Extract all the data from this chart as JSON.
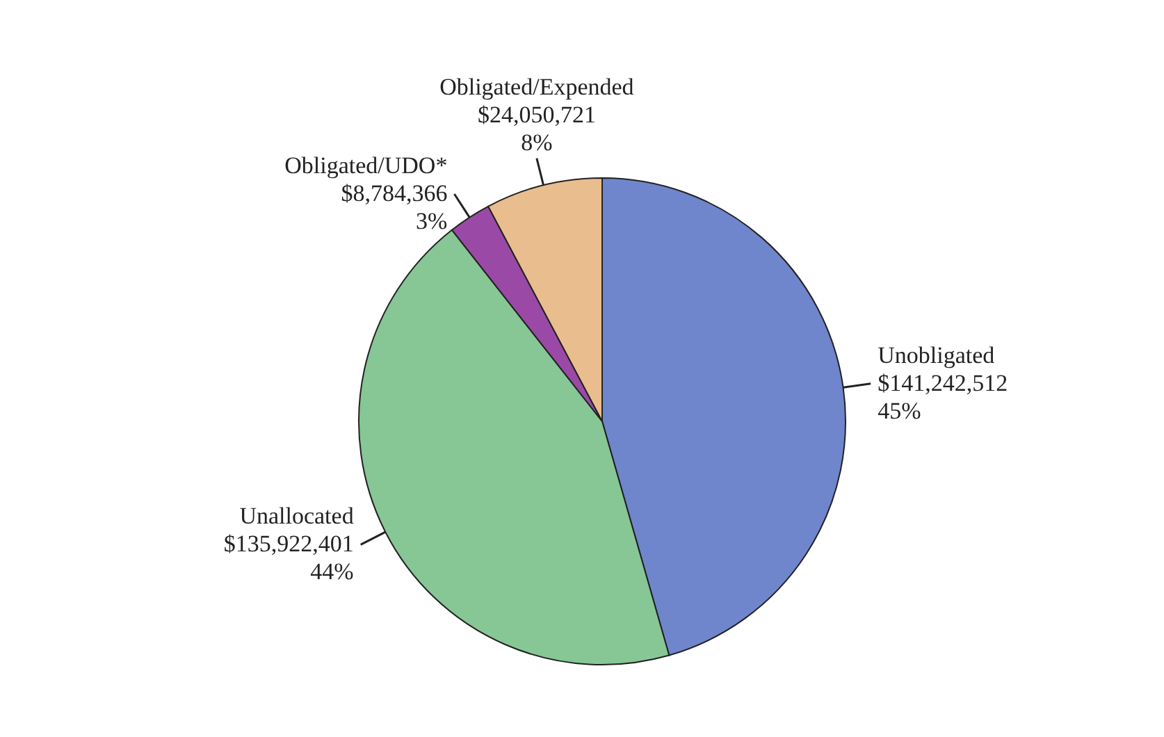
{
  "chart_data": {
    "type": "pie",
    "categories": [
      "Unobligated",
      "Unallocated",
      "Obligated/UDO*",
      "Obligated/Expended"
    ],
    "values": [
      141242512,
      135922401,
      8784366,
      24050721
    ],
    "colors": [
      "#6f86cc",
      "#86c795",
      "#9a4aa6",
      "#e9bd8e"
    ],
    "value_labels": [
      "$141,242,512\n45%",
      "$135,922,401\n44%",
      "$8,784,366\n3%",
      "$24,050,721\n8%"
    ]
  }
}
